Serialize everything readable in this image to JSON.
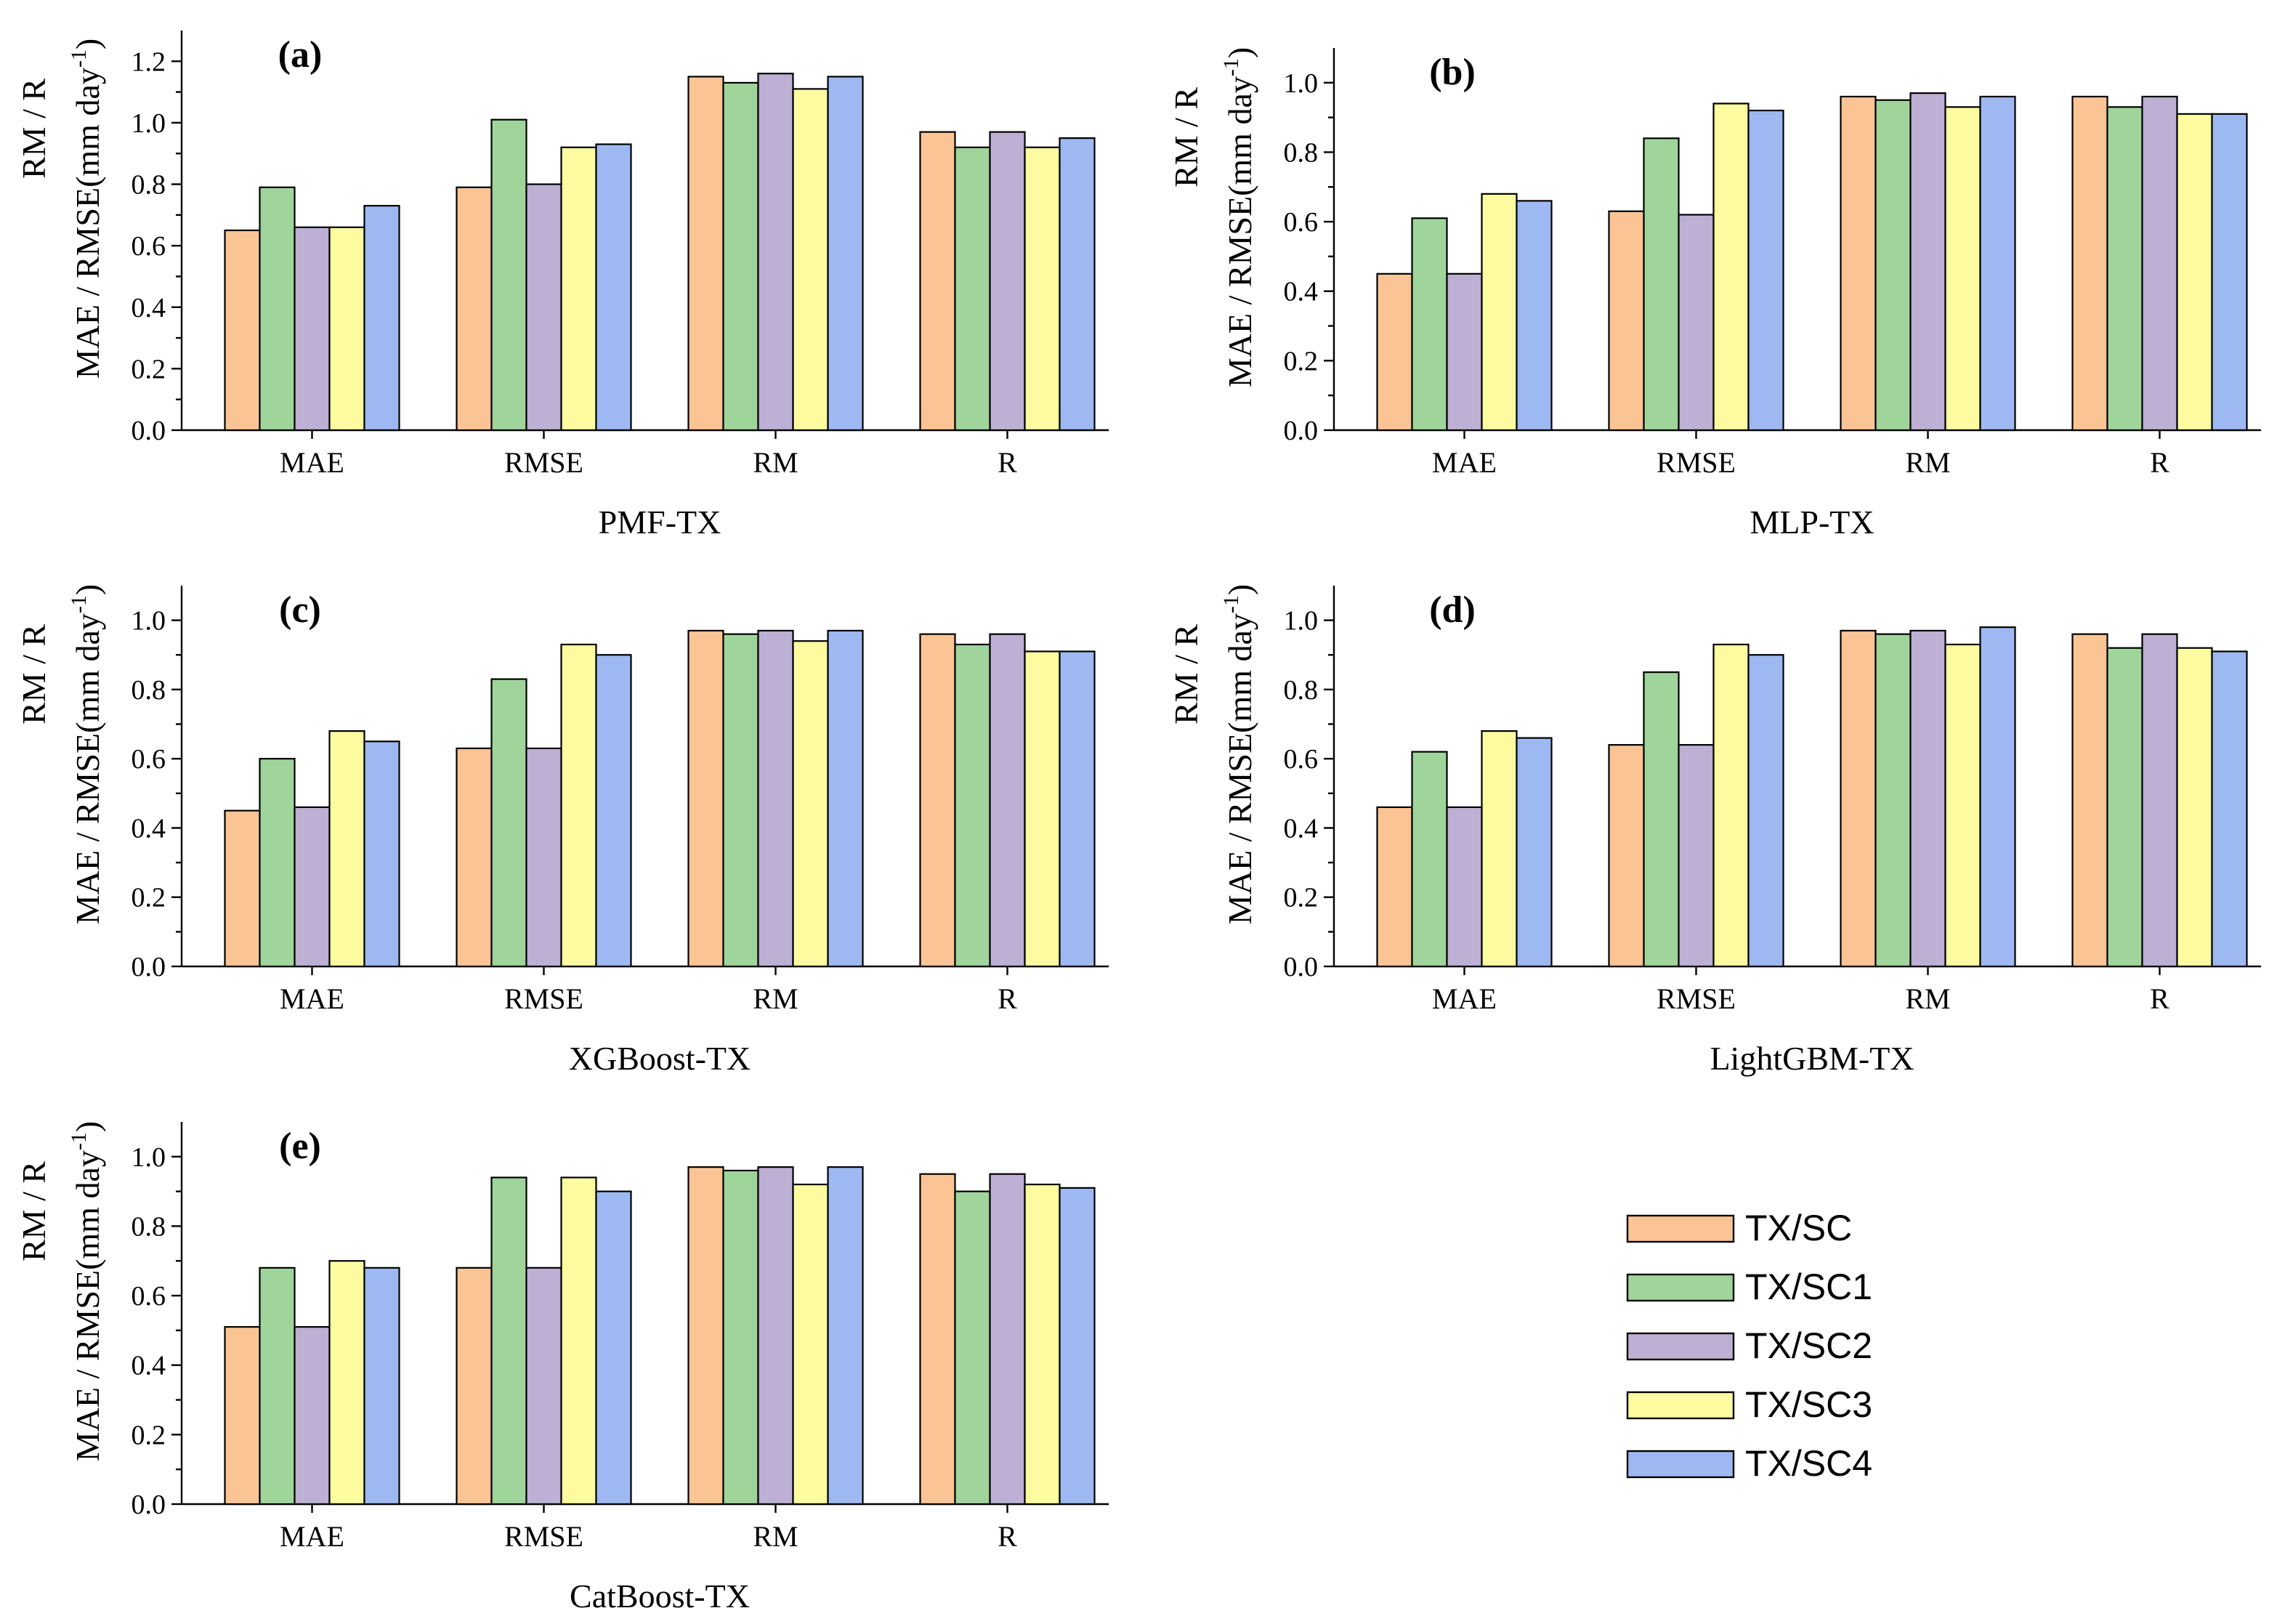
{
  "chart_data": [
    {
      "type": "bar",
      "panel": "(a)",
      "xlabel": "PMF-TX",
      "ylabel_line1": "RM / R",
      "ylabel_line2": "MAE / RMSE(mm day",
      "ylabel_sup": "-1",
      "ylabel_close": ")",
      "categories": [
        "MAE",
        "RMSE",
        "RM",
        "R"
      ],
      "ylim": [
        0,
        1.3
      ],
      "yticks": [
        "0.0",
        "0.2",
        "0.4",
        "0.6",
        "0.8",
        "1.0",
        "1.2"
      ],
      "series": [
        {
          "name": "TX/SC",
          "values": [
            0.65,
            0.79,
            1.15,
            0.97
          ]
        },
        {
          "name": "TX/SC1",
          "values": [
            0.79,
            1.01,
            1.13,
            0.92
          ]
        },
        {
          "name": "TX/SC2",
          "values": [
            0.66,
            0.8,
            1.16,
            0.97
          ]
        },
        {
          "name": "TX/SC3",
          "values": [
            0.66,
            0.92,
            1.11,
            0.92
          ]
        },
        {
          "name": "TX/SC4",
          "values": [
            0.73,
            0.93,
            1.15,
            0.95
          ]
        }
      ]
    },
    {
      "type": "bar",
      "panel": "(b)",
      "xlabel": "MLP-TX",
      "ylabel_line1": "RM / R",
      "ylabel_line2": "MAE / RMSE(mm day",
      "ylabel_sup": "-1",
      "ylabel_close": ")",
      "categories": [
        "MAE",
        "RMSE",
        "RM",
        "R"
      ],
      "ylim": [
        0,
        1.1
      ],
      "yticks": [
        "0.0",
        "0.2",
        "0.4",
        "0.6",
        "0.8",
        "1.0"
      ],
      "series": [
        {
          "name": "TX/SC",
          "values": [
            0.45,
            0.63,
            0.96,
            0.96
          ]
        },
        {
          "name": "TX/SC1",
          "values": [
            0.61,
            0.84,
            0.95,
            0.93
          ]
        },
        {
          "name": "TX/SC2",
          "values": [
            0.45,
            0.62,
            0.97,
            0.96
          ]
        },
        {
          "name": "TX/SC3",
          "values": [
            0.68,
            0.94,
            0.93,
            0.91
          ]
        },
        {
          "name": "TX/SC4",
          "values": [
            0.66,
            0.92,
            0.96,
            0.91
          ]
        }
      ]
    },
    {
      "type": "bar",
      "panel": "(c)",
      "xlabel": "XGBoost-TX",
      "ylabel_line1": "RM / R",
      "ylabel_line2": "MAE / RMSE(mm day",
      "ylabel_sup": "-1",
      "ylabel_close": ")",
      "categories": [
        "MAE",
        "RMSE",
        "RM",
        "R"
      ],
      "ylim": [
        0,
        1.1
      ],
      "yticks": [
        "0.0",
        "0.2",
        "0.4",
        "0.6",
        "0.8",
        "1.0"
      ],
      "series": [
        {
          "name": "TX/SC",
          "values": [
            0.45,
            0.63,
            0.97,
            0.96
          ]
        },
        {
          "name": "TX/SC1",
          "values": [
            0.6,
            0.83,
            0.96,
            0.93
          ]
        },
        {
          "name": "TX/SC2",
          "values": [
            0.46,
            0.63,
            0.97,
            0.96
          ]
        },
        {
          "name": "TX/SC3",
          "values": [
            0.68,
            0.93,
            0.94,
            0.91
          ]
        },
        {
          "name": "TX/SC4",
          "values": [
            0.65,
            0.9,
            0.97,
            0.91
          ]
        }
      ]
    },
    {
      "type": "bar",
      "panel": "(d)",
      "xlabel": "LightGBM-TX",
      "ylabel_line1": "RM / R",
      "ylabel_line2": "MAE / RMSE(mm day",
      "ylabel_sup": "-1",
      "ylabel_close": ")",
      "categories": [
        "MAE",
        "RMSE",
        "RM",
        "R"
      ],
      "ylim": [
        0,
        1.1
      ],
      "yticks": [
        "0.0",
        "0.2",
        "0.4",
        "0.6",
        "0.8",
        "1.0"
      ],
      "series": [
        {
          "name": "TX/SC",
          "values": [
            0.46,
            0.64,
            0.97,
            0.96
          ]
        },
        {
          "name": "TX/SC1",
          "values": [
            0.62,
            0.85,
            0.96,
            0.92
          ]
        },
        {
          "name": "TX/SC2",
          "values": [
            0.46,
            0.64,
            0.97,
            0.96
          ]
        },
        {
          "name": "TX/SC3",
          "values": [
            0.68,
            0.93,
            0.93,
            0.92
          ]
        },
        {
          "name": "TX/SC4",
          "values": [
            0.66,
            0.9,
            0.98,
            0.91
          ]
        }
      ]
    },
    {
      "type": "bar",
      "panel": "(e)",
      "xlabel": "CatBoost-TX",
      "ylabel_line1": "RM / R",
      "ylabel_line2": "MAE / RMSE(mm day",
      "ylabel_sup": "-1",
      "ylabel_close": ")",
      "categories": [
        "MAE",
        "RMSE",
        "RM",
        "R"
      ],
      "ylim": [
        0,
        1.1
      ],
      "yticks": [
        "0.0",
        "0.2",
        "0.4",
        "0.6",
        "0.8",
        "1.0"
      ],
      "series": [
        {
          "name": "TX/SC",
          "values": [
            0.51,
            0.68,
            0.97,
            0.95
          ]
        },
        {
          "name": "TX/SC1",
          "values": [
            0.68,
            0.94,
            0.96,
            0.9
          ]
        },
        {
          "name": "TX/SC2",
          "values": [
            0.51,
            0.68,
            0.97,
            0.95
          ]
        },
        {
          "name": "TX/SC3",
          "values": [
            0.7,
            0.94,
            0.92,
            0.92
          ]
        },
        {
          "name": "TX/SC4",
          "values": [
            0.68,
            0.9,
            0.97,
            0.91
          ]
        }
      ]
    }
  ],
  "legend": {
    "placement": "bottom-right",
    "items": [
      "TX/SC",
      "TX/SC1",
      "TX/SC2",
      "TX/SC3",
      "TX/SC4"
    ]
  },
  "colors": {
    "TX/SC": "#FAC495",
    "TX/SC1": "#9FD59B",
    "TX/SC2": "#BEAFD4",
    "TX/SC3": "#FCFB9F",
    "TX/SC4": "#9EB9F1"
  }
}
